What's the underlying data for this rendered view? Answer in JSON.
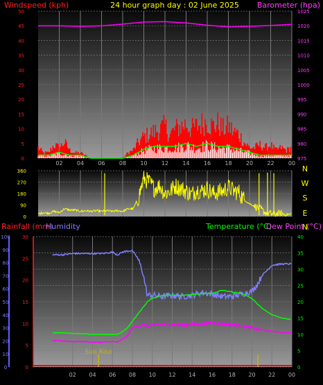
{
  "title": "24 hour graph day : 02 June 2025",
  "colors": {
    "windspeed": "#ff0000",
    "gust": "#ff0000",
    "wind_avg": "#00ff00",
    "wind_low": "#ffffff",
    "barometer": "#ff00ff",
    "direction": "#ffff00",
    "rainfall": "#ff0000",
    "humidity": "#7f7fff",
    "temperature": "#00ff00",
    "dewpoint": "#ff00ff",
    "sunrise": "#c8b400",
    "axis_text": "#b4b4b4"
  },
  "chart_data": [
    {
      "type": "area",
      "name": "wind-barometer",
      "labels": {
        "left": "Windspeed (kph)",
        "right": "Barometer (hpa)"
      },
      "x_ticks": [
        "02",
        "04",
        "06",
        "08",
        "10",
        "12",
        "14",
        "16",
        "18",
        "20",
        "22",
        "00"
      ],
      "xlim": [
        0,
        24
      ],
      "y_left": {
        "range": [
          0,
          50
        ],
        "ticks": [
          "0",
          "5",
          "10",
          "15",
          "20",
          "25",
          "30",
          "35",
          "40",
          "45",
          "50"
        ]
      },
      "y_right": {
        "range": [
          975,
          1025
        ],
        "ticks": [
          "975",
          "980",
          "985",
          "990",
          "995",
          "1000",
          "1005",
          "1010",
          "1015",
          "1020",
          "1025"
        ]
      },
      "series": [
        {
          "name": "Windspeed",
          "x": [
            0,
            0.5,
            1,
            1.5,
            2,
            2.5,
            3,
            3.5,
            4,
            4.5,
            5,
            5.5,
            6,
            6.5,
            7,
            7.5,
            8,
            8.5,
            9,
            9.5,
            10,
            10.5,
            11,
            11.5,
            12,
            12.5,
            13,
            13.5,
            14,
            14.5,
            15,
            15.5,
            16,
            16.5,
            17,
            17.5,
            18,
            18.5,
            19,
            19.5,
            20,
            20.5,
            21,
            21.5,
            22,
            22.5,
            23,
            23.5,
            24
          ],
          "values": [
            4,
            2,
            2,
            5,
            4,
            6,
            3,
            2,
            2,
            1,
            0,
            0,
            0,
            0,
            0,
            0,
            0,
            2,
            3,
            6,
            8,
            9,
            10,
            11,
            12,
            9,
            11,
            12,
            13,
            11,
            12,
            13,
            14,
            12,
            13,
            11,
            12,
            10,
            9,
            6,
            4,
            4,
            5,
            4,
            5,
            3,
            4,
            3,
            4
          ]
        },
        {
          "name": "Wind average",
          "x": [
            0,
            1,
            2,
            3,
            4,
            5,
            6,
            7,
            8,
            9,
            10,
            11,
            12,
            13,
            14,
            15,
            16,
            17,
            18,
            19,
            20,
            21,
            22,
            23,
            24
          ],
          "values": [
            1,
            1,
            2,
            1,
            1,
            0,
            0,
            0,
            0,
            1,
            3,
            4,
            4,
            4,
            5,
            4,
            5,
            4,
            4,
            3,
            2,
            1,
            1,
            1,
            1
          ]
        },
        {
          "name": "Barometer",
          "x": [
            0,
            2,
            4,
            6,
            8,
            10,
            12,
            14,
            16,
            18,
            20,
            22,
            24
          ],
          "values": [
            1020,
            1020,
            1019.8,
            1020,
            1020.6,
            1021.3,
            1021.4,
            1021,
            1020.2,
            1019.6,
            1019.8,
            1020.1,
            1020.5
          ]
        }
      ]
    },
    {
      "type": "scatter",
      "name": "wind-direction",
      "x_ticks": [
        "02",
        "04",
        "06",
        "08",
        "10",
        "12",
        "14",
        "16",
        "18",
        "20",
        "22",
        "00"
      ],
      "xlim": [
        0,
        24
      ],
      "y_left": {
        "range": [
          0,
          360
        ],
        "ticks": [
          "0",
          "90",
          "180",
          "270",
          "360"
        ]
      },
      "y_right_labels": [
        "N",
        "W",
        "S",
        "E",
        "N"
      ],
      "series": [
        {
          "name": "Direction",
          "x": [
            0,
            0.5,
            1,
            1.5,
            2,
            2.5,
            3,
            3.5,
            4,
            4.5,
            5,
            5.5,
            6,
            6.5,
            7,
            7.5,
            8,
            8.5,
            9,
            9.5,
            10,
            10.5,
            11,
            11.5,
            12,
            12.5,
            13,
            13.5,
            14,
            14.5,
            15,
            15.5,
            16,
            16.5,
            17,
            17.5,
            18,
            18.5,
            19,
            19.5,
            20,
            20.5,
            21,
            21.5,
            22,
            22.5,
            23,
            23.5,
            24
          ],
          "values": [
            20,
            30,
            25,
            40,
            30,
            60,
            50,
            50,
            40,
            45,
            40,
            45,
            40,
            45,
            40,
            45,
            40,
            60,
            60,
            150,
            300,
            270,
            220,
            240,
            180,
            200,
            240,
            220,
            200,
            170,
            210,
            200,
            220,
            180,
            190,
            200,
            230,
            200,
            190,
            130,
            100,
            80,
            60,
            30,
            20,
            20,
            20,
            15,
            20
          ]
        }
      ]
    },
    {
      "type": "line",
      "name": "temp-humidity-rain",
      "labels": {
        "rainfall": "Rainfall (mm)",
        "humidity": "Humidity",
        "temperature": "Temperature (°C)",
        "dewpoint": "Dew Point (°C)"
      },
      "annotation": "Sun Rise",
      "x_ticks": [
        "02",
        "04",
        "06",
        "08",
        "10",
        "12",
        "14",
        "16",
        "18",
        "20",
        "22",
        "00"
      ],
      "xlim": [
        0,
        24
      ],
      "y_humidity": {
        "range": [
          0,
          100
        ],
        "ticks": [
          "0",
          "10",
          "20",
          "30",
          "40",
          "50",
          "60",
          "70",
          "80",
          "90",
          "100"
        ]
      },
      "y_rain": {
        "range": [
          0,
          30
        ],
        "ticks": [
          "0",
          "5",
          "10",
          "15",
          "20",
          "25",
          "30"
        ]
      },
      "y_temp": {
        "range": [
          0,
          40
        ],
        "ticks": [
          "0",
          "5",
          "10",
          "15",
          "20",
          "25",
          "30",
          "35",
          "40"
        ]
      },
      "series": [
        {
          "name": "Humidity",
          "x": [
            0,
            1,
            2,
            3,
            4,
            5,
            6,
            6.5,
            7,
            7.5,
            8,
            8.5,
            9,
            9.5,
            10,
            11,
            12,
            13,
            14,
            15,
            16,
            17,
            18,
            19,
            20,
            20.5,
            21,
            21.5,
            22,
            23,
            24
          ],
          "values": [
            86,
            86,
            87,
            87,
            87,
            87,
            88,
            86,
            88,
            89,
            89,
            84,
            74,
            55,
            55,
            54,
            55,
            54,
            55,
            57,
            56,
            54,
            54,
            56,
            58,
            63,
            70,
            74,
            78,
            79,
            79
          ]
        },
        {
          "name": "Temperature",
          "x": [
            0,
            1,
            2,
            3,
            4,
            5,
            6,
            6.5,
            7,
            7.5,
            8,
            8.5,
            9,
            9.5,
            10,
            11,
            12,
            13,
            14,
            15,
            16,
            17,
            18,
            19,
            20,
            20.5,
            21,
            21.5,
            22,
            23,
            24
          ],
          "values": [
            10.5,
            10.5,
            10.3,
            10.2,
            10,
            10,
            10,
            10,
            10.8,
            12,
            14,
            16,
            18,
            20,
            21,
            22,
            22,
            22,
            22.2,
            22.5,
            22.5,
            23.5,
            23,
            22.5,
            21,
            19.5,
            18,
            17,
            16,
            15,
            14.5
          ]
        },
        {
          "name": "Dew Point",
          "x": [
            0,
            1,
            2,
            3,
            4,
            5,
            6,
            6.5,
            7,
            7.5,
            8,
            8.5,
            9,
            9.5,
            10,
            11,
            12,
            13,
            14,
            15,
            16,
            17,
            18,
            19,
            20,
            20.5,
            21,
            21.5,
            22,
            23,
            24
          ],
          "values": [
            8,
            8,
            7.8,
            7.8,
            7.6,
            7.6,
            7.8,
            7.6,
            8.5,
            9.5,
            12,
            12.5,
            13,
            12.5,
            12.8,
            13,
            13,
            12.8,
            13,
            13.2,
            13.5,
            13.2,
            13,
            12.5,
            12,
            11.5,
            11.5,
            11,
            11,
            10.5,
            10.5
          ]
        },
        {
          "name": "Rainfall",
          "x": [
            0,
            24
          ],
          "values": [
            0,
            0
          ]
        }
      ]
    }
  ]
}
